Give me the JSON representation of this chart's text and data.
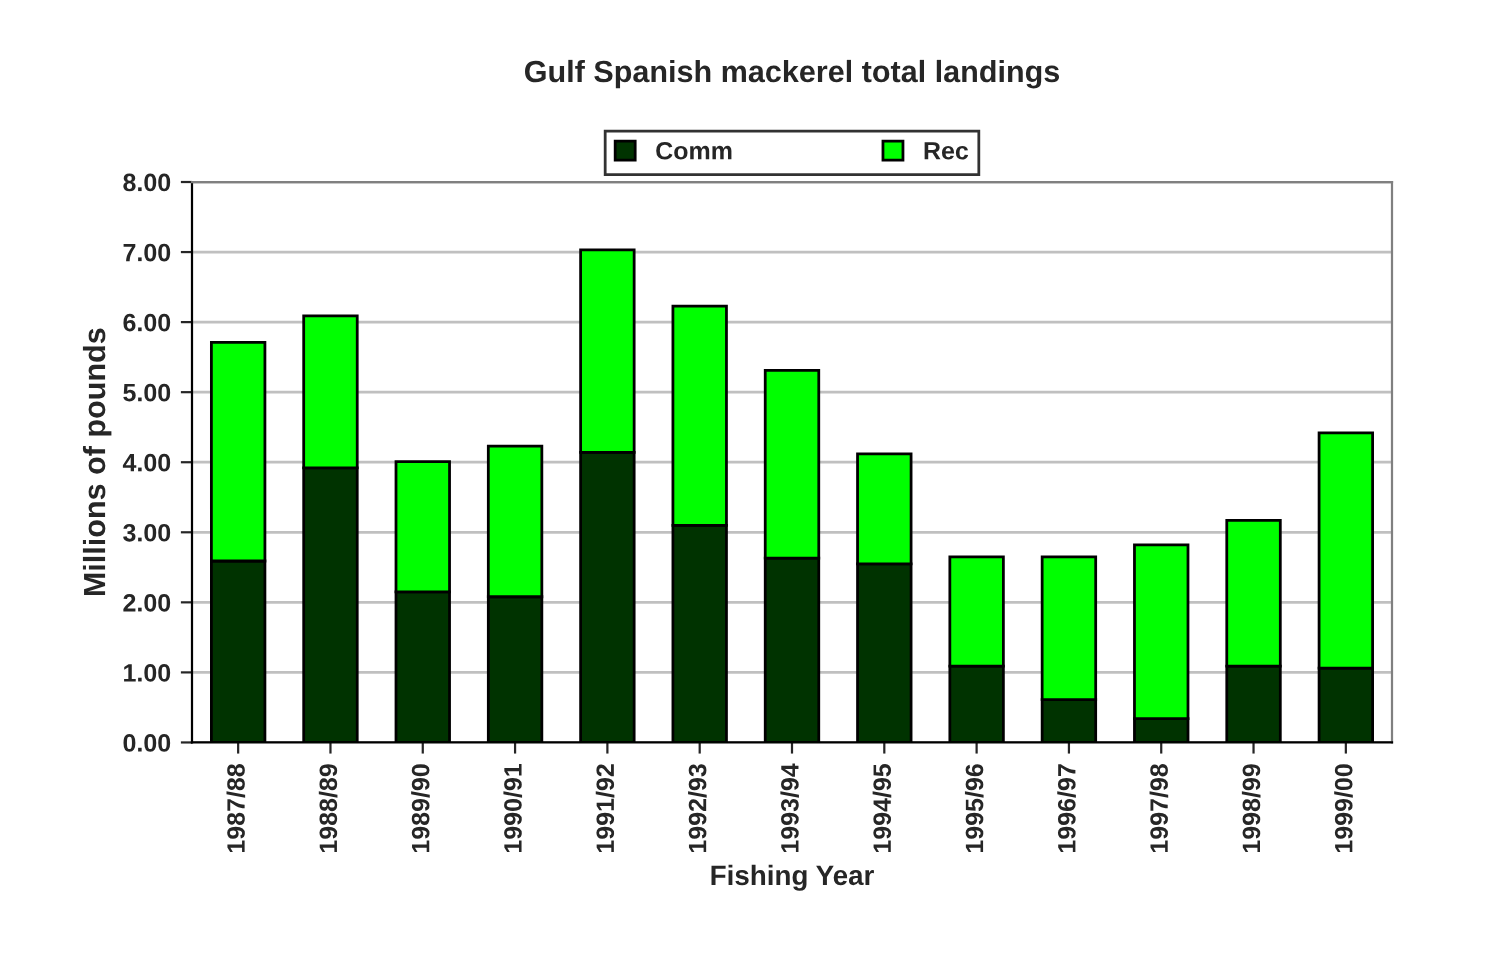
{
  "chart_data": {
    "type": "bar",
    "title": "Gulf Spanish mackerel total landings",
    "xlabel": "Fishing Year",
    "ylabel": "Millions of pounds",
    "categories": [
      "1987/88",
      "1988/89",
      "1989/90",
      "1990/91",
      "1991/92",
      "1992/93",
      "1993/94",
      "1994/95",
      "1995/96",
      "1996/97",
      "1997/98",
      "1998/99",
      "1999/00"
    ],
    "stacked": true,
    "series": [
      {
        "name": "Comm",
        "color": "#003300",
        "values": [
          2.59,
          3.92,
          2.15,
          2.08,
          4.14,
          3.1,
          2.63,
          2.55,
          1.09,
          0.61,
          0.34,
          1.09,
          1.06
        ]
      },
      {
        "name": "Rec",
        "color": "#00ff00",
        "values": [
          3.12,
          2.17,
          1.86,
          2.15,
          2.89,
          3.13,
          2.68,
          1.57,
          1.56,
          2.04,
          2.48,
          2.08,
          3.36
        ]
      }
    ],
    "ylim": [
      0,
      8
    ],
    "yticks": [
      {
        "value": 0,
        "label": "0.00"
      },
      {
        "value": 1,
        "label": "1.00"
      },
      {
        "value": 2,
        "label": "2.00"
      },
      {
        "value": 3,
        "label": "3.00"
      },
      {
        "value": 4,
        "label": "4.00"
      },
      {
        "value": 5,
        "label": "5.00"
      },
      {
        "value": 6,
        "label": "6.00"
      },
      {
        "value": 7,
        "label": "7.00"
      },
      {
        "value": 8,
        "label": "8.00"
      }
    ],
    "grid": "y",
    "legend": "top"
  }
}
